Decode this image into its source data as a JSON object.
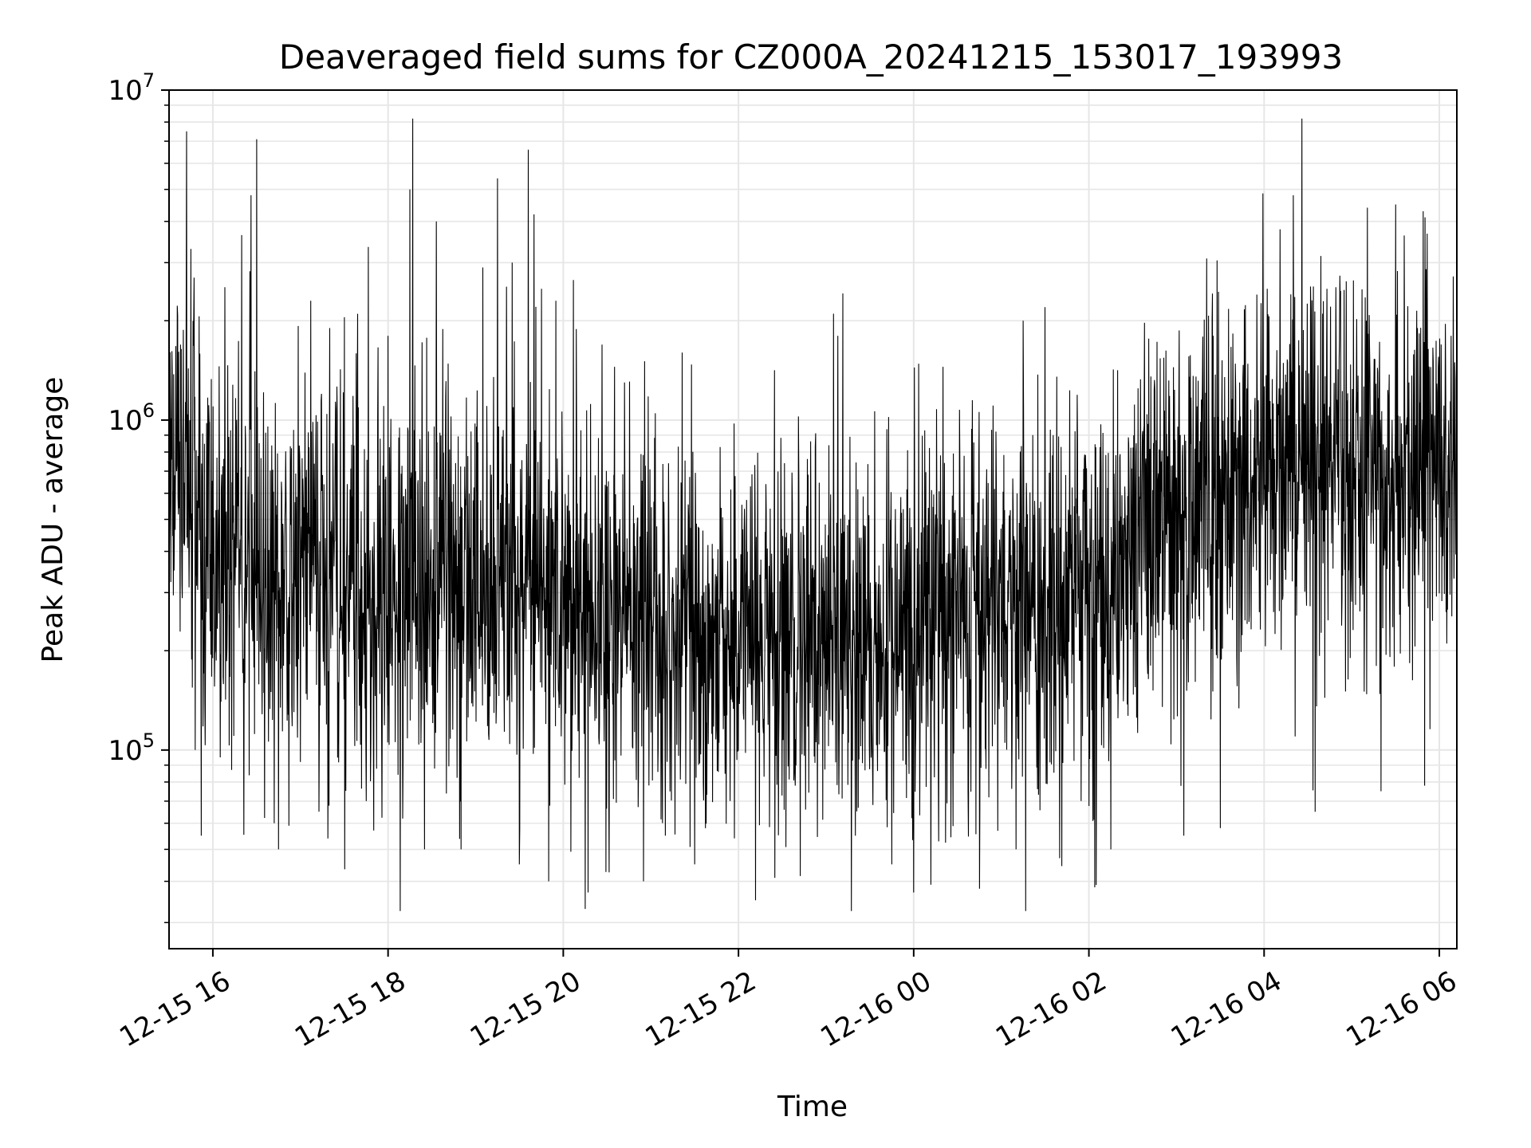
{
  "chart_data": {
    "type": "line",
    "title": "Deaveraged field sums for CZ000A_20241215_153017_193993",
    "xlabel": "Time",
    "ylabel": "Peak ADU - average",
    "yscale": "log",
    "ylim": [
      25000,
      10000000
    ],
    "xlim": [
      "2024-12-15 15:30",
      "2024-12-16 06:12"
    ],
    "grid": true,
    "x_ticks": [
      {
        "t": "2024-12-15 16:00",
        "label": "12-15 16"
      },
      {
        "t": "2024-12-15 18:00",
        "label": "12-15 18"
      },
      {
        "t": "2024-12-15 20:00",
        "label": "12-15 20"
      },
      {
        "t": "2024-12-15 22:00",
        "label": "12-15 22"
      },
      {
        "t": "2024-12-16 00:00",
        "label": "12-16 00"
      },
      {
        "t": "2024-12-16 02:00",
        "label": "12-16 02"
      },
      {
        "t": "2024-12-16 04:00",
        "label": "12-16 04"
      },
      {
        "t": "2024-12-16 06:00",
        "label": "12-16 06"
      }
    ],
    "y_ticks": [
      {
        "value": 100000,
        "base": "10",
        "exp": "5"
      },
      {
        "value": 1000000,
        "base": "10",
        "exp": "6"
      },
      {
        "value": 10000000,
        "base": "10",
        "exp": "7"
      }
    ],
    "series": [
      {
        "color": "#000000",
        "x": [
          "2024-12-15 15:30",
          "2024-12-15 15:45",
          "2024-12-15 16:00",
          "2024-12-15 16:15",
          "2024-12-15 16:30",
          "2024-12-15 16:45",
          "2024-12-15 17:00",
          "2024-12-15 17:15",
          "2024-12-15 17:30",
          "2024-12-15 17:45",
          "2024-12-15 18:00",
          "2024-12-15 18:15",
          "2024-12-15 18:30",
          "2024-12-15 18:45",
          "2024-12-15 19:00",
          "2024-12-15 19:15",
          "2024-12-15 19:30",
          "2024-12-15 19:45",
          "2024-12-15 20:00",
          "2024-12-15 20:15",
          "2024-12-15 20:30",
          "2024-12-15 20:45",
          "2024-12-15 21:00",
          "2024-12-15 21:15",
          "2024-12-15 21:30",
          "2024-12-15 21:45",
          "2024-12-15 22:00",
          "2024-12-15 22:15",
          "2024-12-15 22:30",
          "2024-12-15 22:45",
          "2024-12-15 23:00",
          "2024-12-15 23:15",
          "2024-12-15 23:30",
          "2024-12-15 23:45",
          "2024-12-16 00:00",
          "2024-12-16 00:15",
          "2024-12-16 00:30",
          "2024-12-16 00:45",
          "2024-12-16 01:00",
          "2024-12-16 01:15",
          "2024-12-16 01:30",
          "2024-12-16 01:45",
          "2024-12-16 02:00",
          "2024-12-16 02:15",
          "2024-12-16 02:30",
          "2024-12-16 02:45",
          "2024-12-16 03:00",
          "2024-12-16 03:15",
          "2024-12-16 03:30",
          "2024-12-16 03:45",
          "2024-12-16 04:00",
          "2024-12-16 04:15",
          "2024-12-16 04:30",
          "2024-12-16 04:45",
          "2024-12-16 05:00",
          "2024-12-16 05:15",
          "2024-12-16 05:30",
          "2024-12-16 05:45",
          "2024-12-16 06:00",
          "2024-12-16 06:12"
        ],
        "y": [
          850000,
          600000,
          420000,
          450000,
          380000,
          330000,
          360000,
          340000,
          330000,
          300000,
          300000,
          310000,
          320000,
          310000,
          300000,
          290000,
          290000,
          300000,
          270000,
          270000,
          250000,
          240000,
          230000,
          230000,
          220000,
          220000,
          220000,
          230000,
          230000,
          240000,
          230000,
          220000,
          220000,
          220000,
          230000,
          240000,
          250000,
          250000,
          270000,
          280000,
          280000,
          280000,
          290000,
          320000,
          380000,
          460000,
          520000,
          560000,
          580000,
          600000,
          640000,
          660000,
          670000,
          680000,
          690000,
          700000,
          700000,
          710000,
          720000,
          740000
        ],
        "noise_sigma_dex": 0.3,
        "spikes": [
          {
            "t": "2024-12-15 15:42",
            "y": 7500000
          },
          {
            "t": "2024-12-15 15:45",
            "y": 3300000
          },
          {
            "t": "2024-12-15 15:47",
            "y": 2100000
          },
          {
            "t": "2024-12-15 16:05",
            "y": 3600000
          },
          {
            "t": "2024-12-15 16:26",
            "y": 4800000
          },
          {
            "t": "2024-12-15 16:30",
            "y": 7100000
          },
          {
            "t": "2024-12-15 16:45",
            "y": 3200000
          },
          {
            "t": "2024-12-15 17:07",
            "y": 2300000
          },
          {
            "t": "2024-12-15 17:20",
            "y": 1900000
          },
          {
            "t": "2024-12-15 17:30",
            "y": 2050000
          },
          {
            "t": "2024-12-15 18:00",
            "y": 1800000
          },
          {
            "t": "2024-12-15 18:17",
            "y": 8200000
          },
          {
            "t": "2024-12-15 18:15",
            "y": 5000000
          },
          {
            "t": "2024-12-15 18:33",
            "y": 4000000
          },
          {
            "t": "2024-12-15 18:50",
            "y": 3000000
          },
          {
            "t": "2024-12-15 19:05",
            "y": 2900000
          },
          {
            "t": "2024-12-15 19:15",
            "y": 5400000
          },
          {
            "t": "2024-12-15 19:25",
            "y": 3000000
          },
          {
            "t": "2024-12-15 19:36",
            "y": 6600000
          },
          {
            "t": "2024-12-15 19:40",
            "y": 4200000
          },
          {
            "t": "2024-12-15 19:45",
            "y": 2500000
          },
          {
            "t": "2024-12-15 19:55",
            "y": 2300000
          },
          {
            "t": "2024-12-15 20:35",
            "y": 1450000
          },
          {
            "t": "2024-12-15 20:42",
            "y": 1300000
          },
          {
            "t": "2024-12-15 23:05",
            "y": 2100000
          },
          {
            "t": "2024-12-15 23:08",
            "y": 1800000
          },
          {
            "t": "2024-12-16 00:20",
            "y": 1450000
          },
          {
            "t": "2024-12-16 01:15",
            "y": 2000000
          },
          {
            "t": "2024-12-16 01:30",
            "y": 2200000
          },
          {
            "t": "2024-12-16 03:25",
            "y": 1800000
          },
          {
            "t": "2024-12-16 03:55",
            "y": 2400000
          },
          {
            "t": "2024-12-16 04:02",
            "y": 2500000
          },
          {
            "t": "2024-12-16 04:20",
            "y": 4800000
          },
          {
            "t": "2024-12-16 04:40",
            "y": 2100000
          },
          {
            "t": "2024-12-16 04:43",
            "y": 2500000
          },
          {
            "t": "2024-12-16 05:10",
            "y": 2000000
          },
          {
            "t": "2024-12-16 05:30",
            "y": 4500000
          },
          {
            "t": "2024-12-16 05:45",
            "y": 1900000
          },
          {
            "t": "2024-12-16 06:08",
            "y": 1800000
          }
        ],
        "dips": [
          {
            "t": "2024-12-15 15:48",
            "y": 100000
          },
          {
            "t": "2024-12-15 15:52",
            "y": 55000
          },
          {
            "t": "2024-12-15 16:05",
            "y": 95000
          },
          {
            "t": "2024-12-15 16:42",
            "y": 60000
          },
          {
            "t": "2024-12-15 16:45",
            "y": 50000
          },
          {
            "t": "2024-12-15 17:00",
            "y": 92000
          },
          {
            "t": "2024-12-15 17:45",
            "y": 70000
          },
          {
            "t": "2024-12-15 18:10",
            "y": 62000
          },
          {
            "t": "2024-12-15 18:25",
            "y": 50000
          },
          {
            "t": "2024-12-15 18:50",
            "y": 50000
          },
          {
            "t": "2024-12-15 19:30",
            "y": 45000
          },
          {
            "t": "2024-12-15 19:50",
            "y": 40000
          },
          {
            "t": "2024-12-15 20:15",
            "y": 33000
          },
          {
            "t": "2024-12-15 20:17",
            "y": 37000
          },
          {
            "t": "2024-12-15 20:55",
            "y": 40000
          },
          {
            "t": "2024-12-15 21:10",
            "y": 55000
          },
          {
            "t": "2024-12-15 21:30",
            "y": 45000
          },
          {
            "t": "2024-12-15 22:25",
            "y": 41000
          },
          {
            "t": "2024-12-15 23:20",
            "y": 55000
          },
          {
            "t": "2024-12-15 23:45",
            "y": 45000
          },
          {
            "t": "2024-12-16 00:00",
            "y": 37000
          },
          {
            "t": "2024-12-16 00:45",
            "y": 38000
          },
          {
            "t": "2024-12-16 01:10",
            "y": 50000
          },
          {
            "t": "2024-12-16 01:40",
            "y": 47000
          },
          {
            "t": "2024-12-16 02:05",
            "y": 39000
          },
          {
            "t": "2024-12-16 02:15",
            "y": 50000
          },
          {
            "t": "2024-12-16 03:05",
            "y": 55000
          },
          {
            "t": "2024-12-16 03:30",
            "y": 58000
          },
          {
            "t": "2024-12-16 04:35",
            "y": 65000
          },
          {
            "t": "2024-12-16 05:20",
            "y": 75000
          },
          {
            "t": "2024-12-16 05:50",
            "y": 78000
          }
        ]
      }
    ]
  }
}
